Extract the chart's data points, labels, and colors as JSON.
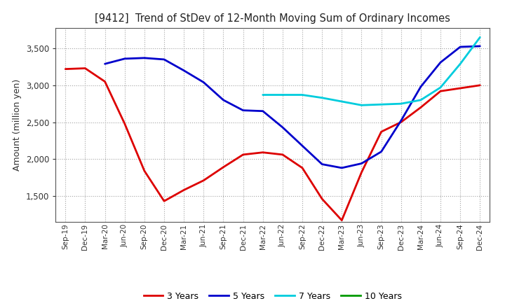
{
  "title": "[9412]  Trend of StDev of 12-Month Moving Sum of Ordinary Incomes",
  "ylabel": "Amount (million yen)",
  "background_color": "#ffffff",
  "grid_color": "#999999",
  "tick_labels": [
    "Sep-19",
    "Dec-19",
    "Mar-20",
    "Jun-20",
    "Sep-20",
    "Dec-20",
    "Mar-21",
    "Jun-21",
    "Sep-21",
    "Dec-21",
    "Mar-22",
    "Jun-22",
    "Sep-22",
    "Dec-22",
    "Mar-23",
    "Jun-23",
    "Sep-23",
    "Dec-23",
    "Mar-24",
    "Jun-24",
    "Sep-24",
    "Dec-24"
  ],
  "ylim": [
    1150,
    3780
  ],
  "yticks": [
    1500,
    2000,
    2500,
    3000,
    3500
  ],
  "series": {
    "3 Years": {
      "color": "#dd0000",
      "values": [
        3220,
        3230,
        3050,
        2480,
        1840,
        1430,
        1580,
        1710,
        1890,
        2060,
        2090,
        2060,
        1880,
        1460,
        1170,
        1820,
        2370,
        2500,
        2700,
        2920,
        2960,
        3000
      ]
    },
    "5 Years": {
      "color": "#0000cc",
      "values": [
        null,
        null,
        3290,
        3360,
        3370,
        3350,
        3200,
        3040,
        2800,
        2660,
        2650,
        2430,
        2180,
        1930,
        1880,
        1940,
        2100,
        2520,
        2980,
        3310,
        3520,
        3530
      ]
    },
    "7 Years": {
      "color": "#00ccdd",
      "values": [
        null,
        null,
        null,
        null,
        null,
        null,
        null,
        null,
        null,
        null,
        2870,
        2870,
        2870,
        2830,
        2780,
        2730,
        2740,
        2750,
        2800,
        2970,
        3290,
        3650
      ]
    },
    "10 Years": {
      "color": "#009900",
      "values": [
        null,
        null,
        null,
        null,
        null,
        null,
        null,
        null,
        null,
        null,
        null,
        null,
        null,
        null,
        null,
        null,
        null,
        null,
        null,
        null,
        null,
        null
      ]
    }
  },
  "legend_labels": [
    "3 Years",
    "5 Years",
    "7 Years",
    "10 Years"
  ],
  "legend_colors": [
    "#dd0000",
    "#0000cc",
    "#00ccdd",
    "#009900"
  ]
}
